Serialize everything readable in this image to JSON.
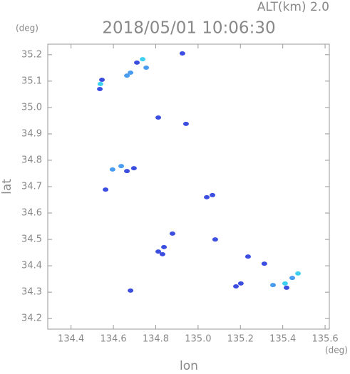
{
  "chart_data": {
    "type": "scatter",
    "title": "2018/05/01 10:06:30",
    "subtitle": "ALT(km)  2.0",
    "xlabel": "lon",
    "ylabel": "lat",
    "xunit": "(deg)",
    "yunit": "(deg)",
    "xlim": [
      134.29,
      135.62
    ],
    "ylim": [
      34.16,
      35.24
    ],
    "xticks": [
      134.4,
      134.6,
      134.8,
      {
        "value": 135.0,
        "label": "135.0"
      },
      135.2,
      135.4,
      135.6
    ],
    "yticks": [
      34.2,
      34.3,
      34.4,
      34.5,
      34.6,
      34.7,
      34.8,
      34.9,
      {
        "value": 35.0,
        "label": "35.0"
      },
      35.1,
      35.2
    ],
    "series": [
      {
        "color": "#3c4ee0",
        "x": [
          134.536,
          134.546,
          134.711,
          134.926,
          134.812,
          134.943,
          134.664,
          134.697,
          134.563,
          135.041,
          135.068,
          135.081,
          134.812,
          134.839,
          134.832,
          134.879,
          135.236,
          135.313,
          135.202,
          135.179,
          135.418,
          134.681
        ],
        "y": [
          35.07,
          35.105,
          35.17,
          35.205,
          34.962,
          34.938,
          34.759,
          34.77,
          34.689,
          34.66,
          34.668,
          34.5,
          34.454,
          34.471,
          34.444,
          34.522,
          34.435,
          34.408,
          34.333,
          34.322,
          34.317,
          34.306
        ]
      },
      {
        "color": "#4a9cf0",
        "x": [
          134.664,
          134.681,
          134.755,
          134.596,
          134.637,
          135.354,
          135.445
        ],
        "y": [
          35.121,
          35.132,
          35.151,
          34.765,
          34.778,
          34.327,
          34.354
        ]
      },
      {
        "color": "#3ed0f0",
        "x": [
          134.539,
          134.738,
          135.411,
          135.472
        ],
        "y": [
          35.089,
          35.183,
          34.333,
          34.371
        ]
      }
    ]
  }
}
